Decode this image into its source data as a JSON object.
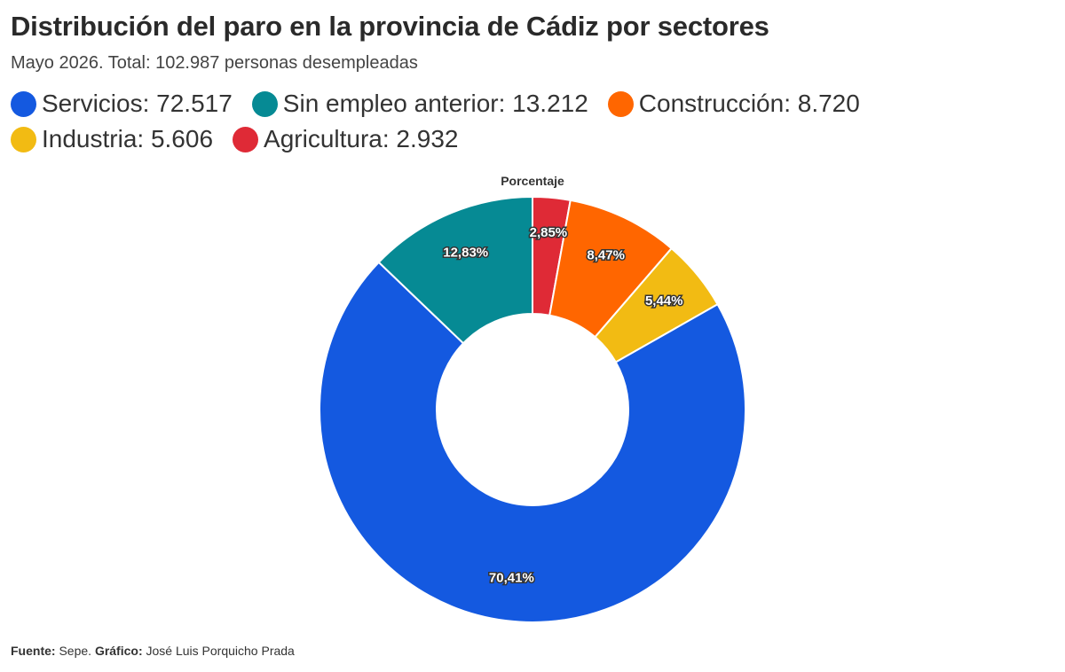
{
  "title": "Distribución del paro en la provincia de Cádiz por sectores",
  "subtitle": "Mayo 2026. Total: 102.987 personas desempleadas",
  "chart_caption": "Porcentaje",
  "footer": {
    "source_label": "Fuente:",
    "source_value": " Sepe. ",
    "chart_label": "Gráfico:",
    "chart_value": " José Luis Porquicho Prada"
  },
  "legend": [
    {
      "text": "Servicios: 72.517",
      "color": "#1459E0"
    },
    {
      "text": "Sin empleo anterior: 13.212",
      "color": "#068A94"
    },
    {
      "text": "Construcción: 8.720",
      "color": "#FF6600"
    },
    {
      "text": "Industria: 5.606",
      "color": "#F2BB13"
    },
    {
      "text": "Agricultura: 2.932",
      "color": "#DF2A36"
    }
  ],
  "chart_data": {
    "type": "pie",
    "donut": true,
    "title": "Porcentaje",
    "slices": [
      {
        "name": "Agricultura",
        "value": 2.85,
        "label": "2,85%",
        "color": "#DF2A36"
      },
      {
        "name": "Construcción",
        "value": 8.47,
        "label": "8,47%",
        "color": "#FF6600"
      },
      {
        "name": "Industria",
        "value": 5.44,
        "label": "5,44%",
        "color": "#F2BB13"
      },
      {
        "name": "Servicios",
        "value": 70.41,
        "label": "70,41%",
        "color": "#1459E0"
      },
      {
        "name": "Sin empleo anterior",
        "value": 12.83,
        "label": "12,83%",
        "color": "#068A94"
      }
    ]
  }
}
